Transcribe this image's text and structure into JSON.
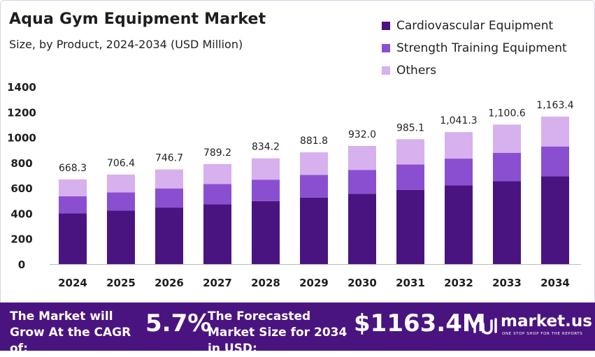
{
  "header": {
    "title": "Aqua Gym Equipment Market",
    "subtitle": "Size, by Product, 2024-2034 (USD Million)"
  },
  "colors": {
    "cardio": "#4a1480",
    "strength": "#8a4fd0",
    "others": "#d7b0ee",
    "footer_bg": "#4a1480"
  },
  "chart_data": {
    "type": "bar",
    "stacked": true,
    "categories": [
      "2024",
      "2025",
      "2026",
      "2027",
      "2028",
      "2029",
      "2030",
      "2031",
      "2032",
      "2033",
      "2034"
    ],
    "series": [
      {
        "name": "Cardiovascular Equipment",
        "values": [
          400,
          422,
          446,
          471,
          497,
          525,
          555,
          586,
          620,
          655,
          692
        ]
      },
      {
        "name": "Strength Training Equipment",
        "values": [
          135,
          143,
          151,
          160,
          169,
          179,
          188,
          200,
          212,
          223,
          236
        ]
      },
      {
        "name": "Others",
        "values": [
          133.3,
          141.4,
          149.7,
          158.2,
          168.2,
          177.8,
          189.0,
          199.1,
          209.3,
          222.6,
          235.4
        ]
      }
    ],
    "totals": [
      "668.3",
      "706.4",
      "746.7",
      "789.2",
      "834.2",
      "881.8",
      "932.0",
      "985.1",
      "1,041.3",
      "1,100.6",
      "1,163.4"
    ],
    "totals_values": [
      668.3,
      706.4,
      746.7,
      789.2,
      834.2,
      881.8,
      932.0,
      985.1,
      1041.3,
      1100.6,
      1163.4
    ],
    "yticks": [
      0,
      200,
      400,
      600,
      800,
      1000,
      1200,
      1400
    ],
    "ylim": [
      0,
      1400
    ],
    "legend_position": "top-right",
    "grid": false
  },
  "footer": {
    "cagr_text": "The Market will Grow At the CAGR of:",
    "cagr_value": "5.7%",
    "forecast_text": "The Forecasted Market Size for 2034 in USD:",
    "forecast_value": "$1163.4M",
    "brand": "market.us",
    "brand_tagline": "ONE STOP SHOP FOR THE REPORTS"
  }
}
